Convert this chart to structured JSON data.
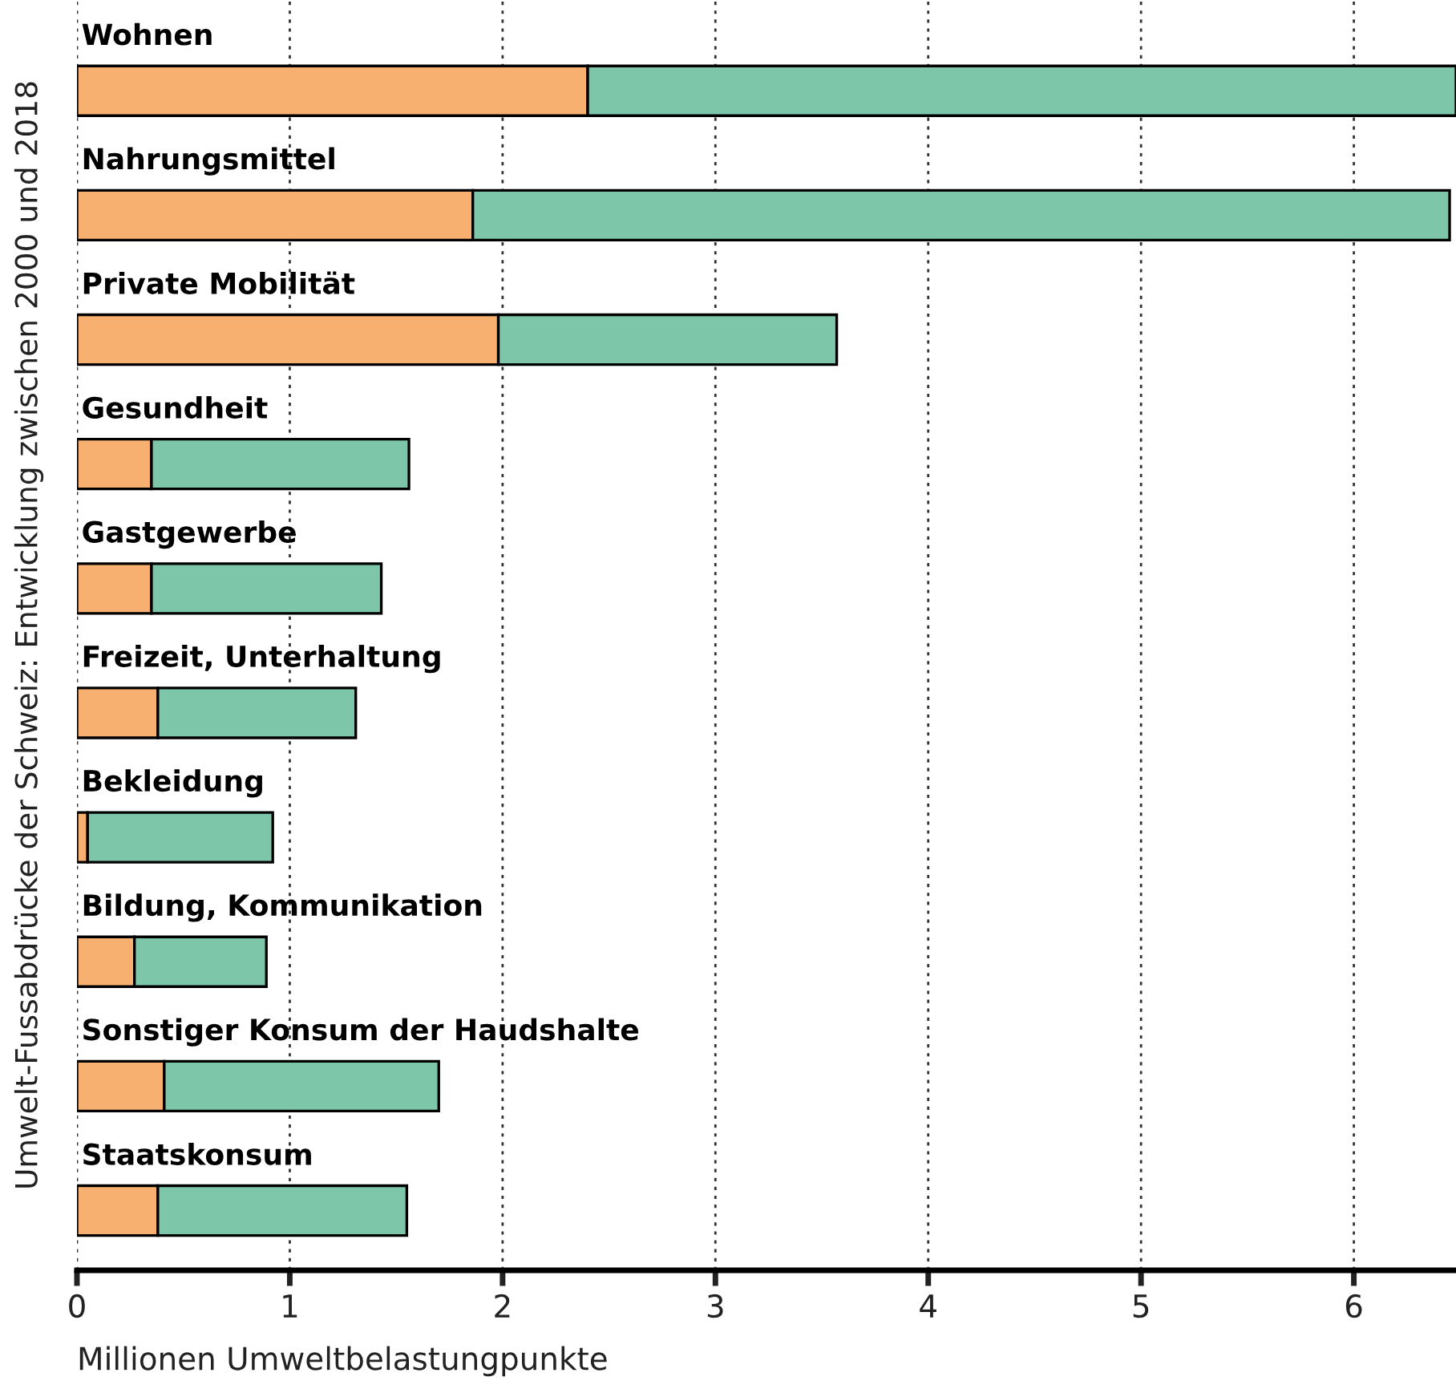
{
  "chart_data": {
    "type": "bar",
    "orientation": "horizontal",
    "stacked": true,
    "xlabel": "Millionen Umweltbelastungpunkte",
    "ylabel": "Umwelt-Fussabdrücke der Schweiz: Entwicklung zwischen 2000 und 2018",
    "categories": [
      "Wohnen",
      "Nahrungsmittel",
      "Private Mobilität",
      "Gesundheit",
      "Gastgewerbe",
      "Freizeit, Unterhaltung",
      "Bekleidung",
      "Bildung, Kommunikation",
      "Sonstiger Konsum der Haudshalte",
      "Staatskonsum"
    ],
    "series": [
      {
        "color": "#f8b070",
        "values": [
          2.4,
          1.86,
          1.98,
          0.35,
          0.35,
          0.38,
          0.05,
          0.27,
          0.41,
          0.38
        ]
      },
      {
        "color": "#7dc6aa",
        "values": [
          4.08,
          4.59,
          1.59,
          1.21,
          1.08,
          0.93,
          0.87,
          0.62,
          1.29,
          1.17
        ]
      }
    ],
    "xlim": [
      0,
      6.48
    ],
    "xticks": [
      0,
      1,
      2,
      3,
      4,
      5,
      6
    ],
    "grid": "x",
    "tick_labels": "x"
  }
}
